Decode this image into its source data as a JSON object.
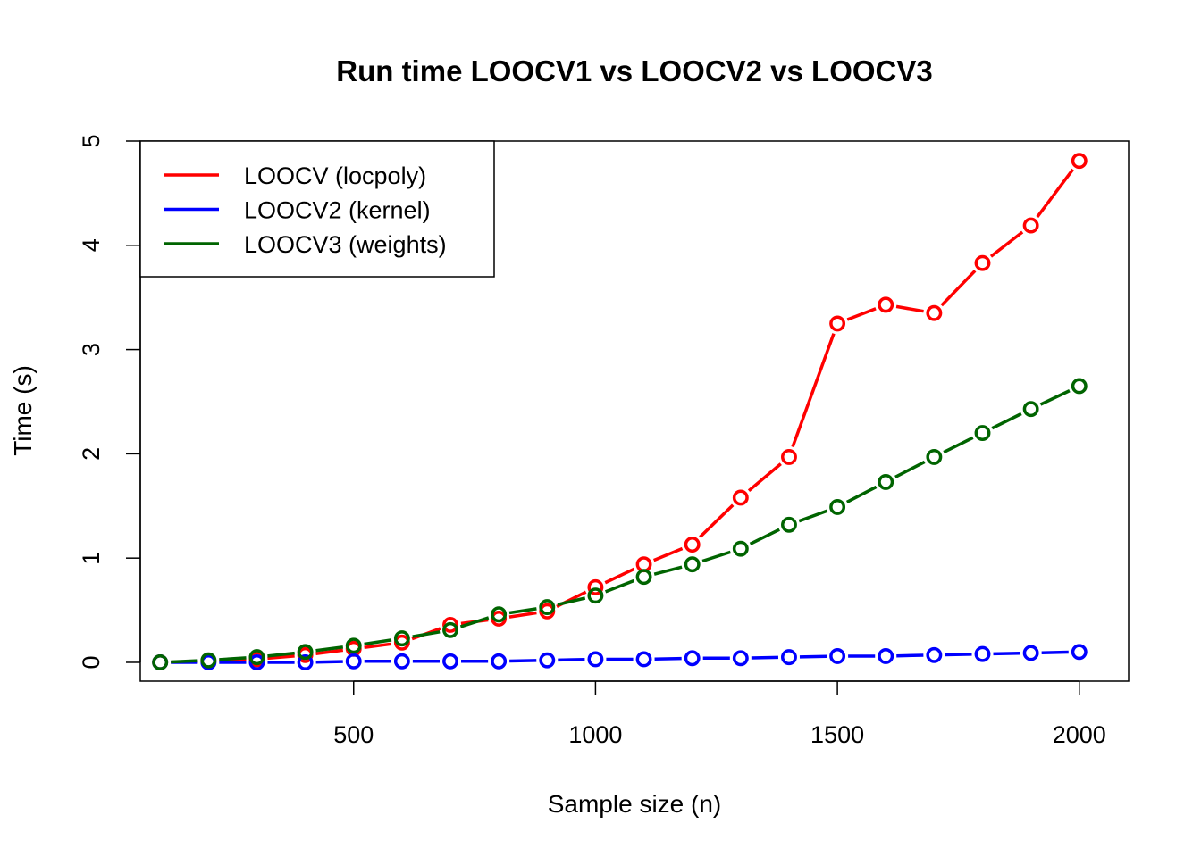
{
  "chart_data": {
    "type": "line",
    "title": "Run time LOOCV1 vs LOOCV2 vs LOOCV3",
    "xlabel": "Sample size (n)",
    "ylabel": "Time (s)",
    "xlim": [
      59,
      2102
    ],
    "ylim": [
      -0.18,
      5.0
    ],
    "xticks": [
      500,
      1000,
      1500,
      2000
    ],
    "yticks": [
      0,
      1,
      2,
      3,
      4,
      5
    ],
    "grid": false,
    "legend_position": "top-left",
    "x": [
      100,
      200,
      300,
      400,
      500,
      600,
      700,
      800,
      900,
      1000,
      1100,
      1200,
      1300,
      1400,
      1500,
      1600,
      1700,
      1800,
      1900,
      2000
    ],
    "series": [
      {
        "name": "LOOCV (locpoly)",
        "color": "#ff0000",
        "values": [
          0.0,
          0.01,
          0.03,
          0.07,
          0.13,
          0.19,
          0.36,
          0.42,
          0.49,
          0.72,
          0.94,
          1.13,
          1.58,
          1.97,
          3.25,
          3.43,
          3.35,
          3.83,
          4.19,
          4.81
        ]
      },
      {
        "name": "LOOCV2 (kernel)",
        "color": "#0000ff",
        "values": [
          0.0,
          0.0,
          0.0,
          0.0,
          0.01,
          0.01,
          0.01,
          0.01,
          0.02,
          0.03,
          0.03,
          0.04,
          0.04,
          0.05,
          0.06,
          0.06,
          0.07,
          0.08,
          0.09,
          0.1
        ]
      },
      {
        "name": "LOOCV3 (weights)",
        "color": "#006400",
        "values": [
          0.0,
          0.02,
          0.05,
          0.1,
          0.16,
          0.23,
          0.31,
          0.46,
          0.53,
          0.64,
          0.82,
          0.94,
          1.09,
          1.32,
          1.49,
          1.73,
          1.97,
          2.2,
          2.43,
          2.65
        ]
      }
    ]
  }
}
